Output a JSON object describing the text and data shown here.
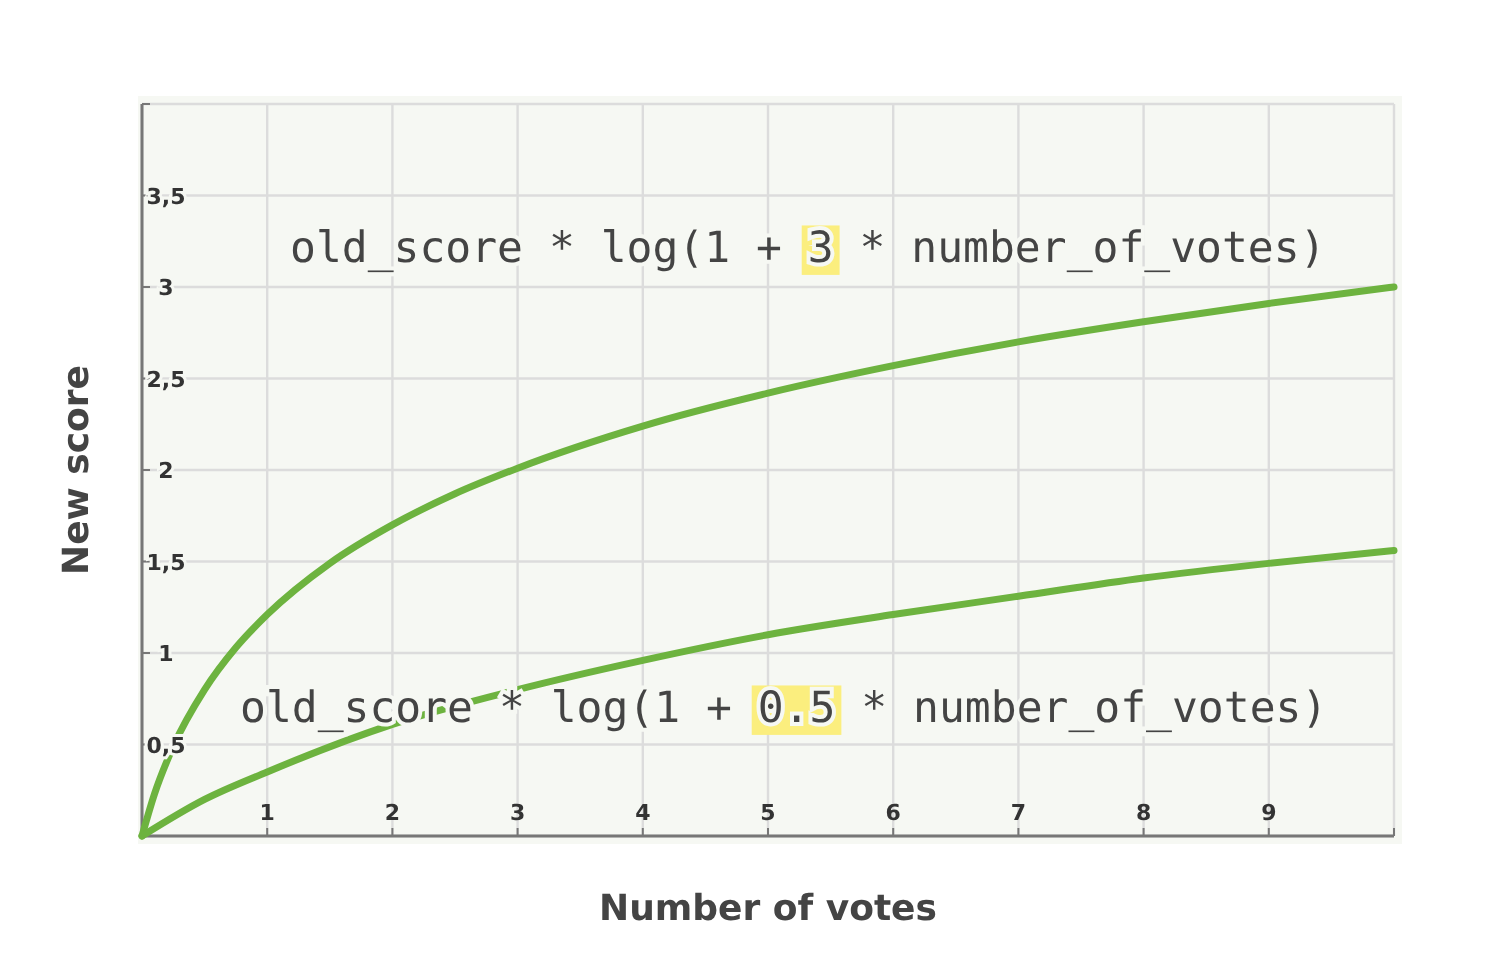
{
  "chart_data": {
    "type": "line",
    "xlabel": "Number of votes",
    "ylabel": "New score",
    "xlim": [
      0,
      10
    ],
    "ylim": [
      0,
      4
    ],
    "xticks": [
      {
        "value": 0,
        "label": null
      },
      1,
      2,
      3,
      4,
      5,
      6,
      7,
      8,
      9,
      {
        "value": 10,
        "label": null
      }
    ],
    "yticks": [
      {
        "value": 0,
        "label": null
      },
      {
        "value": 0.5,
        "label": "0,5"
      },
      1,
      {
        "value": 1.5,
        "label": "1,5"
      },
      2,
      {
        "value": 2.5,
        "label": "2,5"
      },
      3,
      {
        "value": 3.5,
        "label": "3,5"
      },
      {
        "value": 4,
        "label": null
      }
    ],
    "grid": true,
    "line_style": "solid",
    "marker": "none",
    "series": [
      {
        "color": "#6db33f",
        "x": [
          0,
          0.1,
          0.25,
          0.5,
          0.75,
          1,
          1.5,
          2,
          2.5,
          3,
          4,
          5,
          6,
          7,
          8,
          9,
          10
        ],
        "values": [
          0,
          0.23,
          0.49,
          0.8,
          1.03,
          1.21,
          1.49,
          1.7,
          1.87,
          2.01,
          2.24,
          2.42,
          2.57,
          2.7,
          2.81,
          2.91,
          3.0
        ]
      },
      {
        "color": "#6db33f",
        "x": [
          0,
          0.5,
          1,
          2,
          3,
          4,
          5,
          6,
          7,
          8,
          9,
          10
        ],
        "values": [
          0,
          0.2,
          0.35,
          0.61,
          0.8,
          0.96,
          1.1,
          1.21,
          1.31,
          1.41,
          1.49,
          1.56
        ]
      }
    ],
    "annotations": [
      "old_score * log(1 + 3 * number_of_votes)",
      "old_score * log(1 + 0.5 * number_of_votes)"
    ]
  }
}
